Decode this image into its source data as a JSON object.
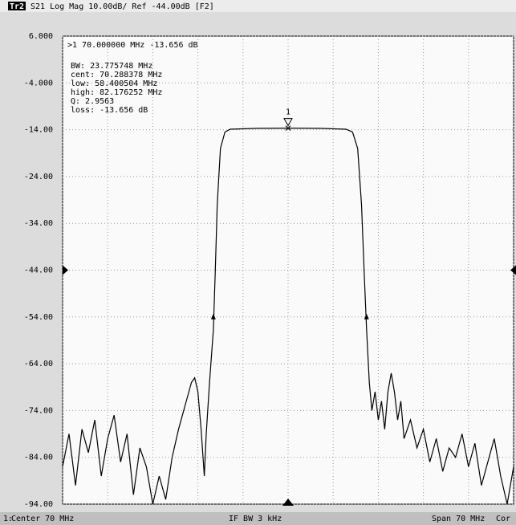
{
  "chart_data": {
    "type": "line",
    "trace_label": "Tr2",
    "title": "S21 Log Mag 10.00dB/ Ref -44.00dB [F2]",
    "readout": [
      ">1  70.000000 MHz -13.656 dB",
      "BW:  23.775748 MHz",
      "cent:  70.288378 MHz",
      "low:  58.400504 MHz",
      "high:  82.176252 MHz",
      "Q:  2.9563",
      "loss:  -13.656 dB"
    ],
    "footer": [
      "1:",
      "Center 70 MHz",
      "IF BW 3 kHz",
      "Span 70 MHz",
      "Cor"
    ],
    "xlim": [
      35,
      105
    ],
    "xgrid": [
      35,
      42,
      49,
      56,
      63,
      70,
      77,
      84,
      91,
      98,
      105
    ],
    "ylim": [
      -94,
      6
    ],
    "yticks": [
      {
        "value": 6,
        "label": "6.000"
      },
      {
        "value": -4,
        "label": "-4.000"
      },
      {
        "value": -14,
        "label": "-14.00"
      },
      {
        "value": -24,
        "label": "-24.00"
      },
      {
        "value": -34,
        "label": "-34.00"
      },
      {
        "value": -44,
        "label": "-44.00"
      },
      {
        "value": -54,
        "label": "-54.00"
      },
      {
        "value": -64,
        "label": "-64.00"
      },
      {
        "value": -74,
        "label": "-74.00"
      },
      {
        "value": -84,
        "label": "-84.00"
      },
      {
        "value": -94,
        "label": "-94.00"
      }
    ],
    "grid": true,
    "color": "#000000",
    "reference": -44,
    "center": 70,
    "marker": {
      "x": 70,
      "y": -13.656,
      "label": "1"
    },
    "bw_markers": [
      {
        "x": 58.400504,
        "y": -54
      },
      {
        "x": 82.176252,
        "y": -54
      }
    ],
    "x": [
      35,
      36,
      37,
      38,
      39,
      40,
      41,
      42,
      43,
      44,
      45,
      46,
      47,
      48,
      49,
      50,
      51,
      52,
      53,
      54,
      55,
      55.5,
      56,
      56.5,
      57,
      57.3,
      57.8,
      58.4,
      58.7,
      59,
      59.5,
      60.2,
      61,
      65,
      70,
      75,
      79,
      80,
      80.8,
      81.4,
      81.8,
      82.18,
      82.6,
      83,
      83.5,
      84,
      84.5,
      85,
      85.5,
      86,
      86.5,
      87,
      87.5,
      88,
      89,
      90,
      91,
      92,
      93,
      94,
      95,
      96,
      97,
      98,
      99,
      100,
      101,
      102,
      103,
      104,
      105
    ],
    "values": [
      -86,
      -79,
      -90,
      -78,
      -83,
      -76,
      -88,
      -80,
      -75,
      -85,
      -79,
      -92,
      -82,
      -86,
      -94,
      -88,
      -93,
      -84,
      -78,
      -73,
      -68,
      -67,
      -70,
      -78,
      -88,
      -79,
      -68,
      -56.7,
      -44,
      -30,
      -18,
      -14.5,
      -13.9,
      -13.7,
      -13.656,
      -13.7,
      -13.9,
      -14.5,
      -18,
      -30,
      -44,
      -56.7,
      -68,
      -74,
      -70,
      -76,
      -72,
      -78,
      -70,
      -66,
      -70,
      -76,
      -72,
      -80,
      -76,
      -82,
      -78,
      -85,
      -80,
      -87,
      -82,
      -84,
      -79,
      -86,
      -81,
      -90,
      -85,
      -80,
      -88,
      -94,
      -86
    ]
  }
}
